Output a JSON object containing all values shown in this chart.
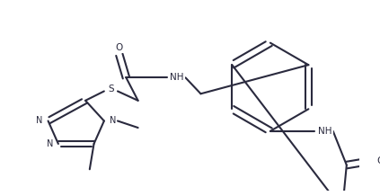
{
  "bg_color": "#ffffff",
  "line_color": "#2a2a3e",
  "line_width": 1.5,
  "dbo": 0.006,
  "figsize": [
    4.23,
    2.18
  ],
  "dpi": 100,
  "xlim": [
    0,
    423
  ],
  "ylim": [
    0,
    218
  ]
}
